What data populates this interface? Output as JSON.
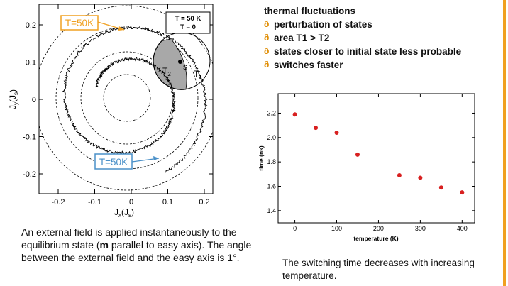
{
  "left_plot": {
    "x_label_main": "J",
    "x_label_sub1": "x",
    "x_label_mid": "(J",
    "x_label_sub2": "s",
    "x_label_end": ")",
    "y_label_main": "J",
    "y_label_sub1": "y",
    "y_label_mid": "(J",
    "y_label_sub2": "s",
    "y_label_end": ")",
    "x_ticks": [
      "-0.2",
      "-0.1",
      "0",
      "0.1",
      "0.2"
    ],
    "y_ticks": [
      "0.2",
      "0.1",
      "0",
      "-0.1",
      "-0.2"
    ],
    "legend_line1": "T = 50 K",
    "legend_line2": "T = 0",
    "callout_top": "T=50K",
    "callout_bottom": "T=50K",
    "label_t1": "T",
    "label_t1_sub": "1",
    "label_t2": "T",
    "label_t2_sub": "2",
    "label_s": "s",
    "callout_top_color": "#f0a020",
    "callout_bottom_color": "#4a90c8",
    "shaded_color": "#a8a8a8"
  },
  "left_caption": {
    "part1": "An external field is applied instantaneously to the equilibrium state (",
    "bold": "m",
    "part2": " parallel to easy axis). The angle between the external field and the easy axis is 1°."
  },
  "bullets": {
    "heading": "thermal fluctuations",
    "marker": "ð",
    "items": [
      "perturbation of states",
      "area T1 > T2",
      "states closer to initial state less probable",
      "switches faster"
    ]
  },
  "chart_data": {
    "type": "scatter",
    "xlabel": "temperature (K)",
    "ylabel": "time (ns)",
    "x_ticks": [
      "0",
      "100",
      "200",
      "300",
      "400"
    ],
    "y_ticks": [
      "1.4",
      "1.6",
      "1.8",
      "2.0",
      "2.2"
    ],
    "xlim": [
      -40,
      430
    ],
    "ylim": [
      1.3,
      2.36
    ],
    "points": [
      {
        "x": 0,
        "y": 2.19
      },
      {
        "x": 50,
        "y": 2.08
      },
      {
        "x": 100,
        "y": 2.04
      },
      {
        "x": 150,
        "y": 1.86
      },
      {
        "x": 250,
        "y": 1.69
      },
      {
        "x": 300,
        "y": 1.67
      },
      {
        "x": 350,
        "y": 1.59
      },
      {
        "x": 400,
        "y": 1.55
      }
    ],
    "marker_color": "#d82020"
  },
  "right_caption": "The switching time decreases with increasing temperature."
}
